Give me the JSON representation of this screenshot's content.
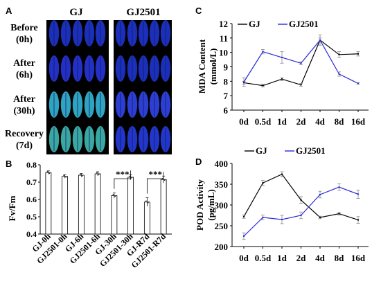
{
  "panels": {
    "a": {
      "letter": "A",
      "columns": [
        "GJ",
        "GJ2501"
      ],
      "rows": [
        {
          "l1": "Before",
          "l2": "(0h)",
          "gj": "#1b2fb8",
          "gj2": "#1b2fb8"
        },
        {
          "l1": "After",
          "l2": "(6h)",
          "gj": "#2430c4",
          "gj2": "#1b2fb8"
        },
        {
          "l1": "After",
          "l2": "(30h)",
          "gj": "#2fa4c0",
          "gj2": "#2c3fd0"
        },
        {
          "l1": "Recovery",
          "l2": "(7d)",
          "gj": "#3aa8a0",
          "gj2": "#2236c8"
        }
      ]
    },
    "b": {
      "letter": "B"
    },
    "c": {
      "letter": "C"
    },
    "d": {
      "letter": "D"
    }
  },
  "chart_data": [
    {
      "panel": "B",
      "type": "bar",
      "ylabel": "Fv/Fm",
      "ylim": [
        0.4,
        0.8
      ],
      "yticks": [
        "0.4",
        "0.5",
        "0.6",
        "0.7",
        "0.8"
      ],
      "categories": [
        "GJ-0h",
        "GJ2501-0h",
        "GJ-6h",
        "GJ2501-6h",
        "GJ-30h",
        "GJ2501-30h",
        "GJ-R7d",
        "GJ2501-R7d"
      ],
      "values": [
        0.755,
        0.733,
        0.74,
        0.748,
        0.622,
        0.728,
        0.585,
        0.715
      ],
      "errors": [
        0.01,
        0.01,
        0.01,
        0.012,
        0.015,
        0.015,
        0.025,
        0.02
      ],
      "significance": [
        {
          "pair": [
            4,
            5
          ],
          "label": "***"
        },
        {
          "pair": [
            6,
            7
          ],
          "label": "***"
        }
      ],
      "grid": false
    },
    {
      "panel": "C",
      "type": "line",
      "ylabel_line1": "MDA Content",
      "ylabel_line2": "(mmol/L)",
      "x": [
        "0d",
        "0.5d",
        "1d",
        "2d",
        "4d",
        "8d",
        "16d"
      ],
      "ylim": [
        6,
        12
      ],
      "yticks": [
        "6",
        "7",
        "8",
        "9",
        "10",
        "11",
        "12"
      ],
      "series": [
        {
          "name": "GJ",
          "color": "#000000",
          "values": [
            7.9,
            7.7,
            8.15,
            7.75,
            10.85,
            9.85,
            9.9
          ],
          "errors": [
            0.1,
            0.1,
            0.1,
            0.1,
            0.15,
            0.2,
            0.15
          ]
        },
        {
          "name": "GJ2501",
          "color": "#2a2ad8",
          "values": [
            7.95,
            10.05,
            9.65,
            9.25,
            10.85,
            8.5,
            7.85
          ],
          "errors": [
            0.3,
            0.15,
            0.4,
            0.1,
            0.35,
            0.15,
            0.05
          ]
        }
      ],
      "legend": "top",
      "grid": false
    },
    {
      "panel": "D",
      "type": "line",
      "ylabel_line1": "POD Activity",
      "ylabel_line2": "(pg/mL)",
      "x": [
        "0d",
        "0.5d",
        "1d",
        "2d",
        "4d",
        "8d",
        "16d"
      ],
      "ylim": [
        200,
        400
      ],
      "yticks": [
        "200",
        "250",
        "300",
        "350",
        "400"
      ],
      "series": [
        {
          "name": "GJ",
          "color": "#000000",
          "values": [
            272,
            353,
            374,
            312,
            270,
            279,
            264
          ],
          "errors": [
            4,
            6,
            6,
            8,
            3,
            3,
            8
          ]
        },
        {
          "name": "GJ2501",
          "color": "#2a2ad8",
          "values": [
            225,
            270,
            265,
            275,
            325,
            343,
            326
          ],
          "errors": [
            8,
            6,
            10,
            8,
            8,
            8,
            10
          ]
        }
      ],
      "legend": "top",
      "grid": false
    }
  ]
}
